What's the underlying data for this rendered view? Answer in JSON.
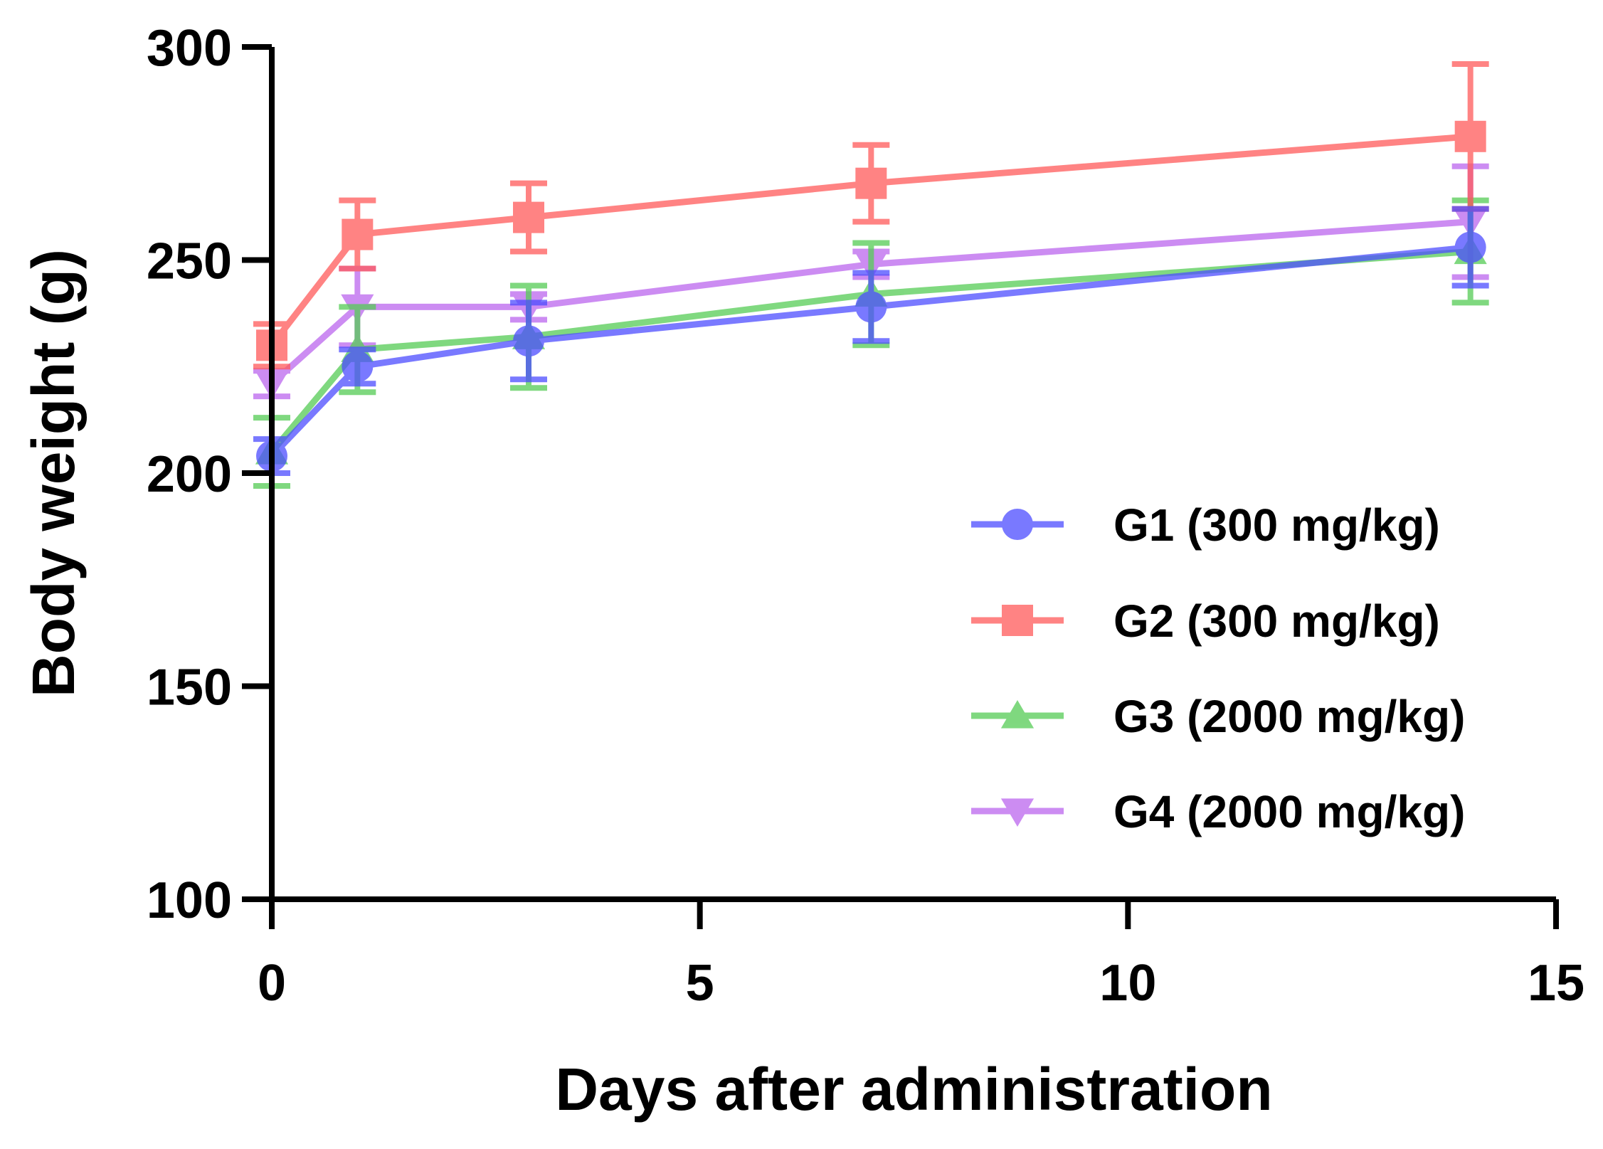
{
  "chart_data": {
    "type": "line",
    "title": "",
    "xlabel": "Days after administration",
    "ylabel": "Body weight (g)",
    "xlim": [
      0,
      15
    ],
    "ylim": [
      100,
      300
    ],
    "xticks": [
      0,
      5,
      10,
      15
    ],
    "yticks": [
      100,
      150,
      200,
      250,
      300
    ],
    "x_tick_labels": [
      "0",
      "5",
      "10",
      "15"
    ],
    "y_tick_labels": [
      "100",
      "150",
      "200",
      "250",
      "300"
    ],
    "grid": false,
    "legend_position": "bottom-right",
    "x": [
      0,
      1,
      3,
      7,
      14
    ],
    "series": [
      {
        "name": "G1 (300 mg/kg)",
        "marker": "circle",
        "color": "#4d4dff",
        "values": [
          204,
          225,
          231,
          239,
          253
        ],
        "error": [
          4,
          4,
          9,
          8,
          9
        ]
      },
      {
        "name": "G2 (300 mg/kg)",
        "marker": "square",
        "color": "#ff5a5a",
        "values": [
          230,
          256,
          260,
          268,
          279
        ],
        "error": [
          5,
          8,
          8,
          9,
          17
        ]
      },
      {
        "name": "G3 (2000 mg/kg)",
        "marker": "triangle-up",
        "color": "#55cc55",
        "values": [
          205,
          229,
          232,
          242,
          252
        ],
        "error": [
          8,
          10,
          12,
          12,
          12
        ]
      },
      {
        "name": "G4 (2000 mg/kg)",
        "marker": "triangle-down",
        "color": "#bb66ee",
        "values": [
          221,
          239,
          239,
          249,
          259
        ],
        "error": [
          3,
          9,
          3,
          3,
          13
        ]
      }
    ]
  }
}
